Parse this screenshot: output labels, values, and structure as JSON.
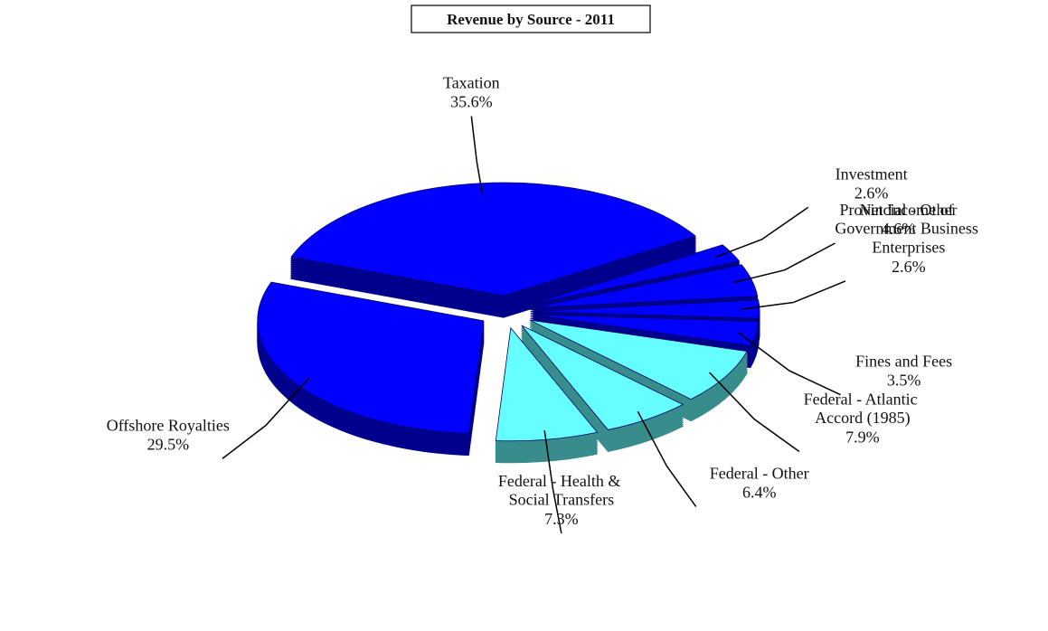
{
  "chart_data": {
    "type": "pie",
    "title": "Revenue by Source - 2011",
    "categories": [
      "Taxation",
      "Investment",
      "Provincial - Other",
      "Net Income of Government Business Enterprises",
      "Fines and Fees",
      "Federal - Atlantic Accord (1985)",
      "Federal - Other",
      "Federal - Health & Social Transfers",
      "Offshore Royalties"
    ],
    "values": [
      35.6,
      2.6,
      4.6,
      2.6,
      3.5,
      7.9,
      6.4,
      7.3,
      29.5
    ],
    "value_labels": [
      "35.6%",
      "2.6%",
      "4.6%",
      "2.6%",
      "3.5%",
      "7.9%",
      "6.4%",
      "7.3%",
      "29.5%"
    ],
    "colors": [
      "#0000ff",
      "#0000ff",
      "#0000ff",
      "#0000ff",
      "#0000ff",
      "#66ffff",
      "#66ffff",
      "#66ffff",
      "#0000ff"
    ]
  }
}
